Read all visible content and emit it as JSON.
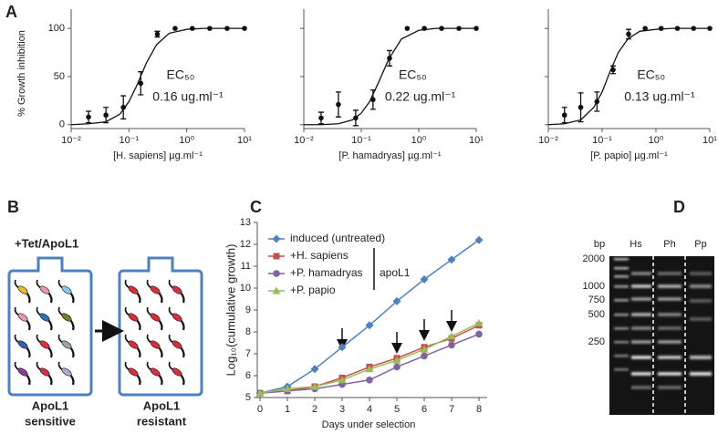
{
  "panel_labels": [
    "A",
    "B",
    "C",
    "D"
  ],
  "chart_data": [
    {
      "type": "scatter",
      "y_label": "% Growth inhibition",
      "x_label": "[H. sapiens] µg.ml⁻¹",
      "x": [
        0.02,
        0.04,
        0.08,
        0.16,
        0.31,
        0.63,
        1.25,
        2.5,
        5,
        10
      ],
      "values": [
        8,
        10,
        18,
        43,
        94,
        100,
        100,
        100,
        100,
        100
      ],
      "errors": [
        6,
        8,
        12,
        12,
        3,
        0,
        0,
        0,
        0,
        0
      ],
      "curve": {
        "x": [
          0.01,
          0.02,
          0.04,
          0.07,
          0.1,
          0.14,
          0.2,
          0.3,
          0.5,
          1,
          2,
          10
        ],
        "values": [
          0,
          1,
          3,
          11,
          24,
          42,
          64,
          83,
          95,
          99,
          100,
          100
        ]
      },
      "annotations": [
        "EC₅₀",
        "0.16 ug.ml⁻¹"
      ],
      "xscale": "log",
      "xlim": [
        0.01,
        10
      ],
      "xticks": [
        {
          "value": 0.01,
          "label": "10⁻²"
        },
        {
          "value": 0.1,
          "label": "10⁻¹"
        },
        {
          "value": 1,
          "label": "10⁰"
        },
        {
          "value": 10,
          "label": "10¹"
        }
      ],
      "ylim": [
        -4,
        120
      ],
      "yticks": [
        0,
        50,
        100
      ],
      "show_ytick_labels": true,
      "color": "#111111"
    },
    {
      "type": "scatter",
      "x_label": "[P. hamadryas] µg.ml⁻¹",
      "x": [
        0.02,
        0.04,
        0.08,
        0.16,
        0.31,
        0.63,
        1.25,
        2.5,
        5,
        10
      ],
      "values": [
        7,
        21,
        7,
        26,
        69,
        100,
        100,
        100,
        100,
        100
      ],
      "errors": [
        6,
        13,
        8,
        10,
        8,
        0,
        0,
        0,
        0,
        0
      ],
      "curve": {
        "x": [
          0.01,
          0.02,
          0.04,
          0.07,
          0.1,
          0.14,
          0.2,
          0.3,
          0.5,
          1,
          2,
          10
        ],
        "values": [
          0,
          0,
          1,
          5,
          12,
          24,
          44,
          68,
          89,
          98,
          100,
          100
        ]
      },
      "annotations": [
        "EC₅₀",
        "0.22 ug.ml⁻¹"
      ],
      "xscale": "log",
      "xlim": [
        0.01,
        10
      ],
      "xticks": [
        {
          "value": 0.01,
          "label": "10⁻²"
        },
        {
          "value": 0.1,
          "label": "10⁻¹"
        },
        {
          "value": 1,
          "label": "10⁰"
        },
        {
          "value": 10,
          "label": "10¹"
        }
      ],
      "ylim": [
        -4,
        120
      ],
      "yticks": [
        0,
        50,
        100
      ],
      "show_ytick_labels": false,
      "color": "#111111"
    },
    {
      "type": "scatter",
      "x_label": "[P. papio] µg.ml⁻¹",
      "x": [
        0.02,
        0.04,
        0.08,
        0.16,
        0.31,
        0.63,
        1.25,
        2.5,
        5,
        10
      ],
      "values": [
        10,
        18,
        24,
        57,
        94,
        100,
        100,
        100,
        100,
        100
      ],
      "errors": [
        8,
        15,
        10,
        4,
        5,
        0,
        0,
        0,
        0,
        0
      ],
      "curve": {
        "x": [
          0.01,
          0.02,
          0.04,
          0.07,
          0.1,
          0.14,
          0.2,
          0.3,
          0.5,
          1,
          2,
          10
        ],
        "values": [
          0,
          1,
          5,
          18,
          34,
          55,
          75,
          89,
          97,
          99,
          100,
          100
        ]
      },
      "annotations": [
        "EC₅₀",
        "0.13 ug.ml⁻¹"
      ],
      "xscale": "log",
      "xlim": [
        0.01,
        10
      ],
      "xticks": [
        {
          "value": 0.01,
          "label": "10⁻²"
        },
        {
          "value": 0.1,
          "label": "10⁻¹"
        },
        {
          "value": 1,
          "label": "10⁰"
        },
        {
          "value": 10,
          "label": "10¹"
        }
      ],
      "ylim": [
        -4,
        120
      ],
      "yticks": [
        0,
        50,
        100
      ],
      "show_ytick_labels": false,
      "color": "#111111"
    },
    {
      "type": "line",
      "x_label": "Days under selection",
      "y_label": "Log₁₀(cumulative growth)",
      "x": [
        0,
        1,
        2,
        3,
        4,
        5,
        6,
        7,
        8
      ],
      "series": [
        {
          "name": "induced (untreated)",
          "color": "#4f81bd",
          "marker": "diamond",
          "values": [
            5.2,
            5.5,
            6.3,
            7.3,
            8.3,
            9.4,
            10.4,
            11.3,
            12.2
          ]
        },
        {
          "name": "+H. sapiens",
          "color": "#c0504d",
          "marker": "square",
          "values": [
            5.2,
            5.3,
            5.5,
            5.9,
            6.4,
            6.8,
            7.3,
            7.7,
            8.3
          ]
        },
        {
          "name": "+P. hamadryas",
          "color": "#8064a2",
          "marker": "circle",
          "values": [
            5.2,
            5.3,
            5.4,
            5.6,
            5.8,
            6.4,
            6.9,
            7.4,
            7.9
          ]
        },
        {
          "name": "+P. papio",
          "color": "#9bbb59",
          "marker": "triangle",
          "values": [
            5.2,
            5.4,
            5.5,
            5.8,
            6.3,
            6.7,
            7.2,
            7.8,
            8.4
          ]
        }
      ],
      "legend_group_label": "apoL1",
      "legend": "top-left",
      "xlim": [
        -0.1,
        8.3
      ],
      "xticks": [
        0,
        1,
        2,
        3,
        4,
        5,
        6,
        7,
        8
      ],
      "ylim": [
        5,
        13
      ],
      "yticks": [
        5,
        6,
        7,
        8,
        9,
        10,
        11,
        12,
        13
      ]
    }
  ],
  "diagram": {
    "treatment": "+Tet/ApoL1",
    "before": [
      "ApoL1",
      "sensitive"
    ],
    "after": [
      "ApoL1",
      "resistant"
    ]
  },
  "gel": {
    "unit": "bp",
    "ladder": [
      "2000",
      "1000",
      "750",
      "500",
      "250"
    ],
    "lanes": [
      "Hs",
      "Ph",
      "Pp"
    ]
  }
}
